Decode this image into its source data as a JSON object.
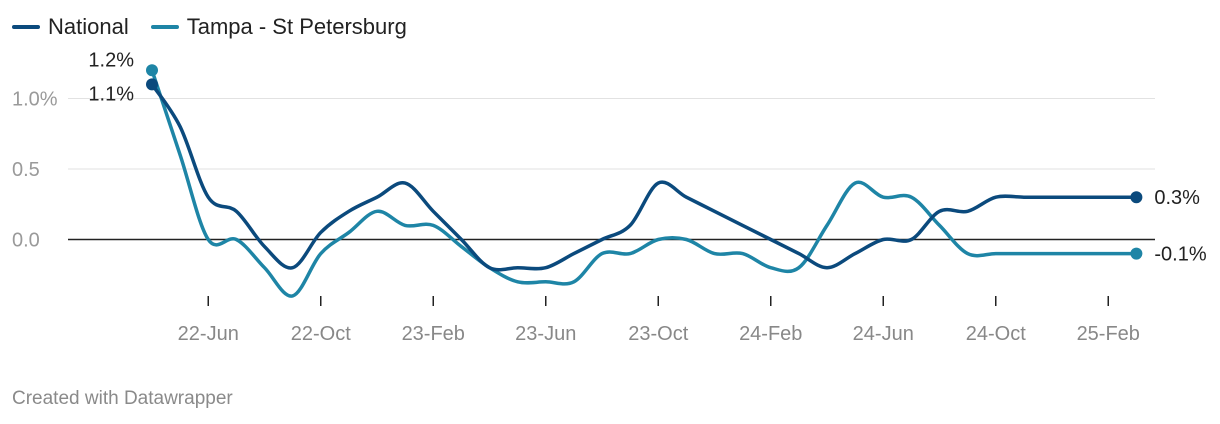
{
  "footer": "Created with Datawrapper",
  "chart_data": {
    "type": "line",
    "title": "",
    "xlabel": "",
    "ylabel": "",
    "ylim": [
      -0.4,
      1.2
    ],
    "yticks": [
      "1.0%",
      "0.5",
      "0.0"
    ],
    "ytick_values": [
      1.0,
      0.5,
      0.0
    ],
    "xtick_labels": [
      "22-Jun",
      "22-Oct",
      "23-Feb",
      "23-Jun",
      "23-Oct",
      "24-Feb",
      "24-Jun",
      "24-Oct",
      "25-Feb"
    ],
    "x": [
      "2022-04",
      "2022-05",
      "2022-06",
      "2022-07",
      "2022-08",
      "2022-09",
      "2022-10",
      "2022-11",
      "2022-12",
      "2023-01",
      "2023-02",
      "2023-03",
      "2023-04",
      "2023-05",
      "2023-06",
      "2023-07",
      "2023-08",
      "2023-09",
      "2023-10",
      "2023-11",
      "2023-12",
      "2024-01",
      "2024-02",
      "2024-03",
      "2024-04",
      "2024-05",
      "2024-06",
      "2024-07",
      "2024-08",
      "2024-09",
      "2024-10",
      "2024-11",
      "2024-12",
      "2025-01",
      "2025-02",
      "2025-03",
      "2025-04",
      "2025-05"
    ],
    "grid": true,
    "legend_position": "top-left",
    "zero_line": true,
    "series": [
      {
        "name": "National",
        "color": "#0b4a7d",
        "values": [
          1.1,
          0.8,
          0.3,
          0.2,
          -0.05,
          -0.2,
          0.05,
          0.2,
          0.3,
          0.4,
          0.2,
          0.0,
          -0.2,
          -0.2,
          -0.2,
          -0.1,
          0.0,
          0.1,
          0.4,
          0.3,
          0.2,
          0.1,
          0.0,
          -0.1,
          -0.2,
          -0.1,
          0.0,
          0.0,
          0.2,
          0.2,
          0.3,
          0.3,
          0.3,
          0.3,
          0.3,
          0.3,
          0.3,
          0.3
        ],
        "start_label": "1.1%",
        "end_label": "0.3%"
      },
      {
        "name": "Tampa - St Petersburg",
        "color": "#1e85a6",
        "values": [
          1.2,
          0.6,
          0.0,
          0.0,
          -0.2,
          -0.4,
          -0.1,
          0.05,
          0.2,
          0.1,
          0.1,
          -0.05,
          -0.2,
          -0.3,
          -0.3,
          -0.3,
          -0.1,
          -0.1,
          0.0,
          0.0,
          -0.1,
          -0.1,
          -0.2,
          -0.2,
          0.1,
          0.4,
          0.3,
          0.3,
          0.1,
          -0.1,
          -0.1,
          -0.1,
          -0.1,
          -0.1,
          -0.1,
          -0.1,
          -0.1,
          -0.1
        ],
        "start_label": "1.2%",
        "end_label": "-0.1%"
      }
    ]
  }
}
